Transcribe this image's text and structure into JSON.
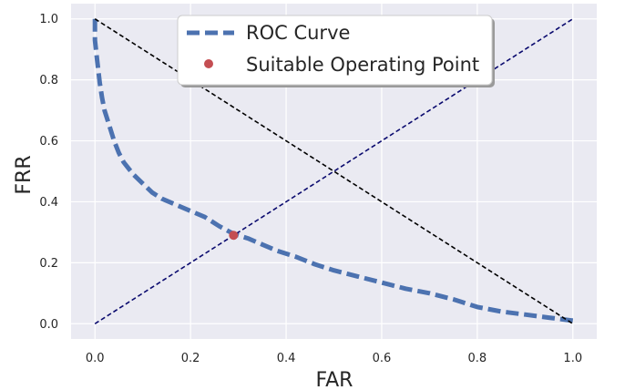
{
  "chart_data": {
    "type": "line",
    "title": "",
    "xlabel": "FAR",
    "ylabel": "FRR",
    "xlim": [
      -0.05,
      1.05
    ],
    "ylim": [
      -0.05,
      1.05
    ],
    "xticks": [
      0.0,
      0.2,
      0.4,
      0.6,
      0.8,
      1.0
    ],
    "yticks": [
      0.0,
      0.2,
      0.4,
      0.6,
      0.8,
      1.0
    ],
    "xtick_labels": [
      "0.0",
      "0.2",
      "0.4",
      "0.6",
      "0.8",
      "1.0"
    ],
    "ytick_labels": [
      "0.0",
      "0.2",
      "0.4",
      "0.6",
      "0.8",
      "1.0"
    ],
    "grid": true,
    "legend_position": "top-center",
    "series": [
      {
        "name": "ROC Curve",
        "style": "dashed",
        "color": "#4c72b0",
        "x": [
          0.0,
          0.0,
          0.005,
          0.01,
          0.015,
          0.02,
          0.03,
          0.04,
          0.05,
          0.06,
          0.08,
          0.1,
          0.12,
          0.14,
          0.17,
          0.2,
          0.23,
          0.26,
          0.29,
          0.32,
          0.35,
          0.38,
          0.42,
          0.46,
          0.5,
          0.55,
          0.6,
          0.65,
          0.7,
          0.75,
          0.8,
          0.85,
          0.9,
          0.95,
          1.0
        ],
        "y": [
          1.0,
          0.93,
          0.86,
          0.79,
          0.74,
          0.7,
          0.65,
          0.6,
          0.56,
          0.53,
          0.49,
          0.46,
          0.43,
          0.41,
          0.39,
          0.37,
          0.35,
          0.32,
          0.295,
          0.28,
          0.26,
          0.24,
          0.22,
          0.195,
          0.175,
          0.155,
          0.135,
          0.115,
          0.1,
          0.08,
          0.055,
          0.04,
          0.03,
          0.02,
          0.01
        ]
      },
      {
        "name": "",
        "style": "dashed",
        "color": "#0a0a6e",
        "x": [
          0.0,
          1.0
        ],
        "y": [
          0.0,
          1.0
        ]
      },
      {
        "name": "",
        "style": "dashed",
        "color": "#000000",
        "x": [
          0.0,
          1.0
        ],
        "y": [
          1.0,
          0.0
        ]
      }
    ],
    "points": [
      {
        "name": "Suitable Operating Point",
        "x": 0.29,
        "y": 0.29,
        "color": "#c44e52"
      }
    ],
    "colors": {
      "plot_bg": "#eaeaf2",
      "grid": "#ffffff"
    }
  }
}
